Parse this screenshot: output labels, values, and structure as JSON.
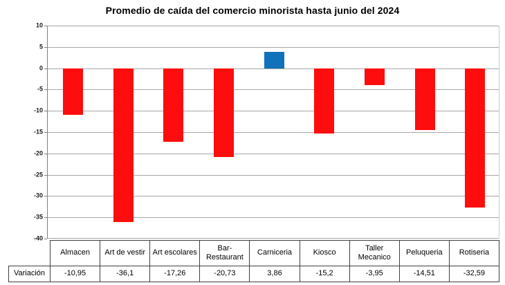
{
  "chart_data": {
    "type": "bar",
    "title": "Promedio de caída del comercio minorista hasta junio del 2024",
    "categories": [
      "Almacen",
      "Art de vestir",
      "Art escolares",
      "Bar-Restaurant",
      "Carniceria",
      "Kiosco",
      "Taller Mecanico",
      "Peluqueria",
      "Rotiseria"
    ],
    "values": [
      -10.95,
      -36.1,
      -17.26,
      -20.73,
      3.86,
      -15.2,
      -3.95,
      -14.51,
      -32.59
    ],
    "value_labels": [
      "-10,95",
      "-36,1",
      "-17,26",
      "-20,73",
      "3,86",
      "-15,2",
      "-3,95",
      "-14,51",
      "-32,59"
    ],
    "row_label": "Variación",
    "xlabel": "",
    "ylabel": "",
    "ylim": [
      -40,
      10
    ],
    "ytick_step": 5,
    "ytick_labels": [
      "10",
      "5",
      "0",
      "-5",
      "-10",
      "-15",
      "-20",
      "-25",
      "-30",
      "-35",
      "-40"
    ],
    "grid": true,
    "legend": "none",
    "colors": {
      "negative_bar": "#fd0d0d",
      "positive_bar": "#1072ba",
      "gridline": "#a6a6a6",
      "table_border": "#3f3f3f"
    }
  }
}
